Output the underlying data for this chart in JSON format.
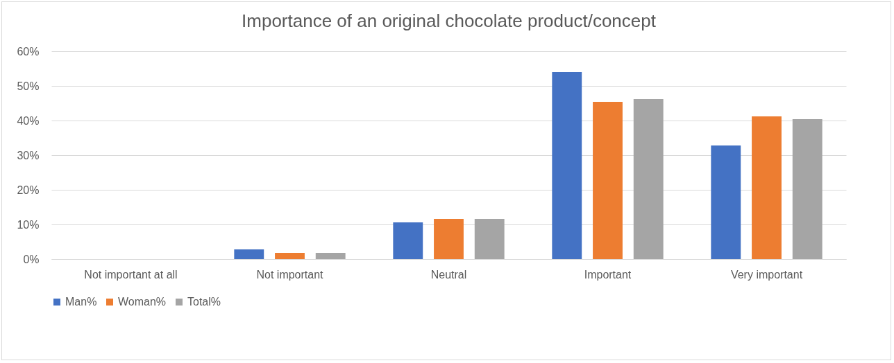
{
  "chart_data": {
    "type": "bar",
    "title": "Importance of an original chocolate product/concept",
    "categories": [
      "Not important at all",
      "Not important",
      "Neutral",
      "Important",
      "Very important"
    ],
    "series": [
      {
        "name": "Man%",
        "color": "#4472c4",
        "values": [
          0,
          2.8,
          10.6,
          54,
          32.8
        ]
      },
      {
        "name": "Woman%",
        "color": "#ed7d31",
        "values": [
          0,
          1.8,
          11.6,
          45.4,
          41.2
        ]
      },
      {
        "name": "Total%",
        "color": "#a5a5a5",
        "values": [
          0,
          1.8,
          11.6,
          46.2,
          40.4
        ]
      }
    ],
    "ylim": [
      0,
      60
    ],
    "yticks": [
      {
        "value": 0,
        "label": "0%"
      },
      {
        "value": 10,
        "label": "10%"
      },
      {
        "value": 20,
        "label": "20%"
      },
      {
        "value": 30,
        "label": "30%"
      },
      {
        "value": 40,
        "label": "40%"
      },
      {
        "value": 50,
        "label": "50%"
      },
      {
        "value": 60,
        "label": "60%"
      }
    ],
    "grid": "y",
    "legend": "bottom"
  }
}
